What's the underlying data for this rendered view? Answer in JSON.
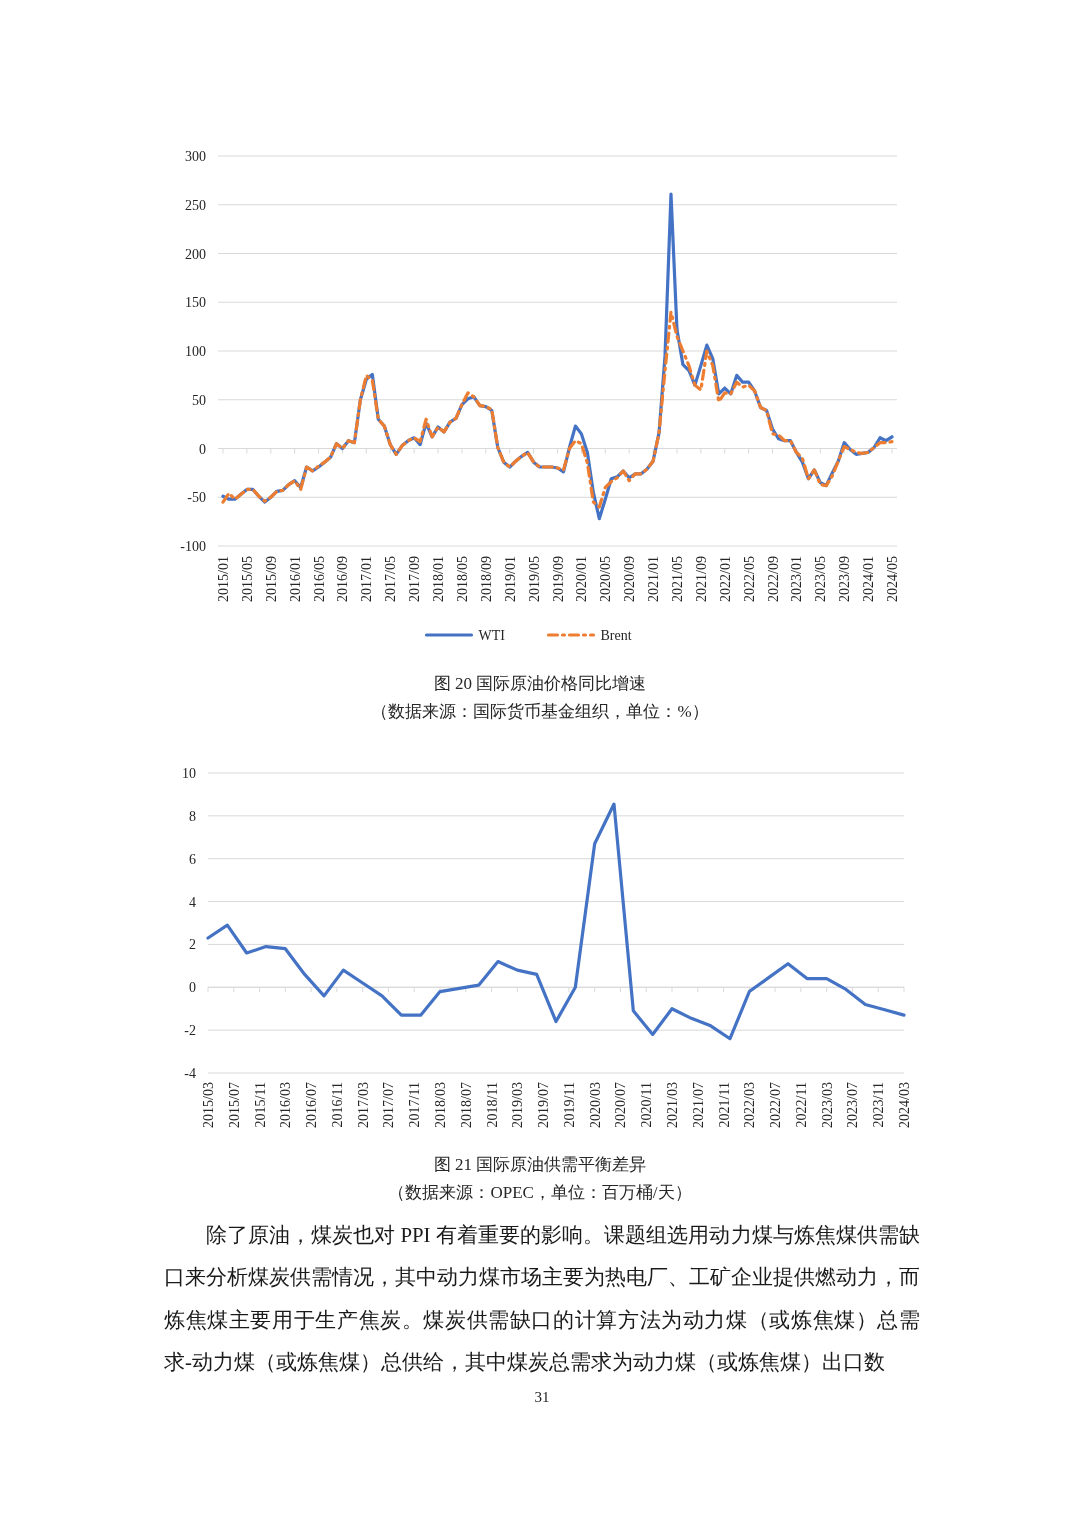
{
  "chart_data": [
    {
      "type": "line",
      "title": "图 20 国际原油价格同比增速",
      "subtitle": "（数据来源：国际货币基金组织，单位：%）",
      "categories": [
        "2015/01",
        null,
        null,
        null,
        "2015/05",
        null,
        null,
        null,
        "2015/09",
        null,
        null,
        null,
        "2016/01",
        null,
        null,
        null,
        "2016/05",
        null,
        null,
        null,
        "2016/09",
        null,
        null,
        null,
        "2017/01",
        null,
        null,
        null,
        "2017/05",
        null,
        null,
        null,
        "2017/09",
        null,
        null,
        null,
        "2018/01",
        null,
        null,
        null,
        "2018/05",
        null,
        null,
        null,
        "2018/09",
        null,
        null,
        null,
        "2019/01",
        null,
        null,
        null,
        "2019/05",
        null,
        null,
        null,
        "2019/09",
        null,
        null,
        null,
        "2020/01",
        null,
        null,
        null,
        "2020/05",
        null,
        null,
        null,
        "2020/09",
        null,
        null,
        null,
        "2021/01",
        null,
        null,
        null,
        "2021/05",
        null,
        null,
        null,
        "2021/09",
        null,
        null,
        null,
        "2022/01",
        null,
        null,
        null,
        "2022/05",
        null,
        null,
        null,
        "2022/09",
        null,
        null,
        null,
        "2023/01",
        null,
        null,
        null,
        "2023/05",
        null,
        null,
        null,
        "2023/09",
        null,
        null,
        null,
        "2024/01",
        null,
        null,
        null,
        "2024/05"
      ],
      "series": [
        {
          "name": "WTI",
          "color": "#4472c4",
          "line_style": "solid",
          "values": [
            -49,
            -52,
            -52,
            -47,
            -42,
            -42,
            -49,
            -55,
            -50,
            -44,
            -43,
            -37,
            -33,
            -40,
            -19,
            -23,
            -19,
            -14,
            -9,
            5,
            0,
            8,
            6,
            50,
            71,
            76,
            30,
            23,
            4,
            -6,
            3,
            8,
            11,
            4,
            26,
            12,
            22,
            17,
            27,
            31,
            45,
            51,
            53,
            44,
            43,
            39,
            1,
            -14,
            -19,
            -13,
            -8,
            -4,
            -14,
            -19,
            -19,
            -19,
            -20,
            -24,
            1,
            23,
            15,
            -4,
            -45,
            -72,
            -52,
            -31,
            -29,
            -23,
            -30,
            -26,
            -26,
            -21,
            -13,
            16,
            95,
            261,
            122,
            86,
            80,
            65,
            85,
            106,
            92,
            56,
            62,
            56,
            75,
            68,
            68,
            59,
            42,
            39,
            20,
            10,
            8,
            8,
            -4,
            -14,
            -31,
            -22,
            -35,
            -38,
            -25,
            -13,
            6,
            -1,
            -6,
            -5,
            -4,
            1,
            11,
            8,
            12
          ]
        },
        {
          "name": "Brent",
          "color": "#ed7d31",
          "line_style": "dashed",
          "values": [
            -55,
            -46,
            -52,
            -47,
            -42,
            -42,
            -49,
            -54,
            -50,
            -44,
            -43,
            -37,
            -33,
            -42,
            -19,
            -23,
            -18,
            -14,
            -9,
            5,
            0,
            8,
            6,
            50,
            75,
            70,
            30,
            23,
            4,
            -6,
            3,
            8,
            11,
            7,
            30,
            12,
            22,
            17,
            27,
            31,
            45,
            57,
            53,
            44,
            43,
            40,
            1,
            -14,
            -19,
            -13,
            -8,
            -4,
            -14,
            -19,
            -19,
            -19,
            -20,
            -22,
            0,
            8,
            5,
            -15,
            -55,
            -60,
            -40,
            -34,
            -30,
            -23,
            -33,
            -26,
            -26,
            -21,
            -13,
            16,
            80,
            140,
            115,
            100,
            85,
            65,
            60,
            100,
            85,
            48,
            57,
            56,
            68,
            63,
            65,
            59,
            42,
            39,
            15,
            14,
            8,
            8,
            -4,
            -10,
            -31,
            -22,
            -37,
            -38,
            -28,
            -13,
            2,
            -1,
            -4,
            -5,
            -4,
            1,
            6,
            6,
            7
          ]
        }
      ],
      "ylim": [
        -100,
        300
      ],
      "yticks": [
        -100,
        -50,
        0,
        50,
        100,
        150,
        200,
        250,
        300
      ],
      "grid": "y",
      "legend": "bottom"
    },
    {
      "type": "line",
      "title": "图 21 国际原油供需平衡差异",
      "subtitle": "（数据来源：OPEC，单位：百万桶/天）",
      "x": [
        "2015-03",
        "2015-06",
        "2015-09",
        "2015-12",
        "2016-03",
        "2016-06",
        "2016-09",
        "2016-12",
        "2017-03",
        "2017-06",
        "2017-09",
        "2017-12",
        "2018-03",
        "2018-06",
        "2018-09",
        "2018-12",
        "2019-03",
        "2019-06",
        "2019-09",
        "2019-12",
        "2020-03",
        "2020-06",
        "2020-09",
        "2020-12",
        "2021-03",
        "2021-06",
        "2021-09",
        "2021-12",
        "2022-03",
        "2022-06",
        "2022-09",
        "2022-12",
        "2023-03",
        "2023-06",
        "2023-09",
        "2023-12",
        "2024-03"
      ],
      "color": "#4472c4",
      "values": [
        2.3,
        2.9,
        1.6,
        1.9,
        1.8,
        0.6,
        -0.4,
        0.8,
        0.2,
        -0.4,
        -1.3,
        -1.3,
        -0.2,
        -0.05,
        0.1,
        1.2,
        0.8,
        0.6,
        -1.6,
        0.0,
        6.7,
        8.55,
        -1.1,
        -2.2,
        -1.0,
        -1.45,
        -1.8,
        -2.4,
        -0.2,
        0.45,
        1.1,
        0.4,
        0.4,
        -0.1,
        -0.8,
        -1.05,
        -1.3
      ],
      "xlim": [
        "2015-03",
        "2024-03"
      ],
      "xticks": [
        {
          "value": "2015-03",
          "label": "2015/03"
        },
        {
          "value": "2015-07",
          "label": "2015/07"
        },
        {
          "value": "2015-11",
          "label": "2015/11"
        },
        {
          "value": "2016-03",
          "label": "2016/03"
        },
        {
          "value": "2016-07",
          "label": "2016/07"
        },
        {
          "value": "2016-11",
          "label": "2016/11"
        },
        {
          "value": "2017-03",
          "label": "2017/03"
        },
        {
          "value": "2017-07",
          "label": "2017/07"
        },
        {
          "value": "2017-11",
          "label": "2017/11"
        },
        {
          "value": "2018-03",
          "label": "2018/03"
        },
        {
          "value": "2018-07",
          "label": "2018/07"
        },
        {
          "value": "2018-11",
          "label": "2018/11"
        },
        {
          "value": "2019-03",
          "label": "2019/03"
        },
        {
          "value": "2019-07",
          "label": "2019/07"
        },
        {
          "value": "2019-11",
          "label": "2019/11"
        },
        {
          "value": "2020-03",
          "label": "2020/03"
        },
        {
          "value": "2020-07",
          "label": "2020/07"
        },
        {
          "value": "2020-11",
          "label": "2020/11"
        },
        {
          "value": "2021-03",
          "label": "2021/03"
        },
        {
          "value": "2021-07",
          "label": "2021/07"
        },
        {
          "value": "2021-11",
          "label": "2021/11"
        },
        {
          "value": "2022-03",
          "label": "2022/03"
        },
        {
          "value": "2022-07",
          "label": "2022/07"
        },
        {
          "value": "2022-11",
          "label": "2022/11"
        },
        {
          "value": "2023-03",
          "label": "2023/03"
        },
        {
          "value": "2023-07",
          "label": "2023/07"
        },
        {
          "value": "2023-11",
          "label": "2023/11"
        },
        {
          "value": "2024-03",
          "label": "2024/03"
        }
      ],
      "ylim": [
        -4,
        10
      ],
      "yticks": [
        -4,
        -2,
        0,
        2,
        4,
        6,
        8,
        10
      ],
      "grid": "y",
      "annotations": [
        "除了原油，煤炭也对 PPI 有着重要的影响。课题组选用动力煤与炼焦煤供需缺口来分析煤炭供需情况，其中动力煤市场主要为热电厂、工矿企业提供燃动力，而炼焦煤主要用于生产焦炭。煤炭供需缺口的计算方法为动力煤（或炼焦煤）总需求-动力煤（或炼焦煤）总供给，其中煤炭总需求为动力煤（或炼焦煤）出口数",
        "31"
      ]
    }
  ]
}
